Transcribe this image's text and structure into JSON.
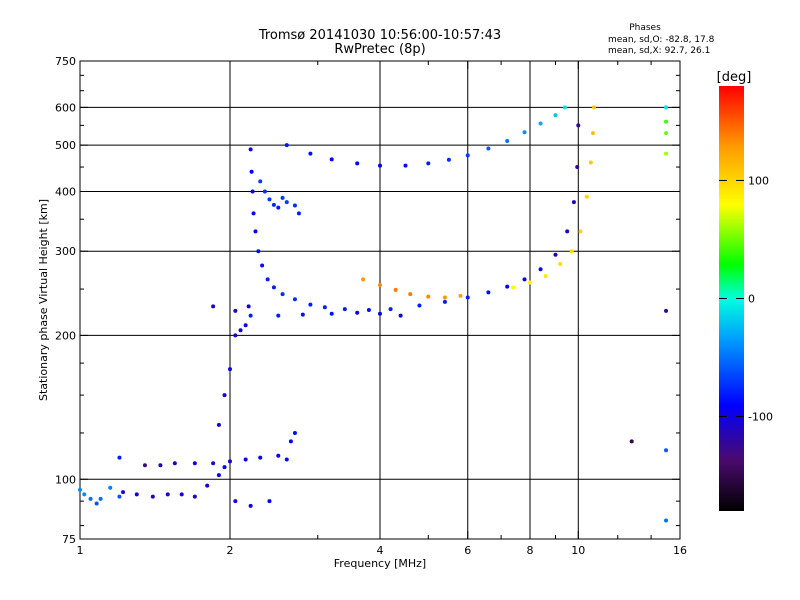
{
  "chart_data": {
    "type": "scatter",
    "title_line1": "Tromsø 20141030 10:56:00-10:57:43",
    "title_line2": "RwPretec (8p)",
    "stats": {
      "heading": "Phases",
      "line_o": "mean, sd,O: -82.8, 17.8",
      "line_x": "mean, sd,X: 92.7, 26.1"
    },
    "xlabel": "Frequency [MHz]",
    "ylabel": "Stationary phase Virtual Height [km]",
    "x_scale": "log",
    "y_scale": "log",
    "xlim": [
      1,
      16
    ],
    "ylim": [
      75,
      750
    ],
    "x_ticks": [
      1,
      2,
      4,
      6,
      8,
      10,
      16
    ],
    "x_tick_labels": [
      "1",
      "2",
      "4",
      "6",
      "8",
      "10",
      "16"
    ],
    "y_ticks": [
      75,
      100,
      200,
      300,
      400,
      500,
      600,
      750
    ],
    "y_tick_labels": [
      "75",
      "100",
      "200",
      "300",
      "400",
      "500",
      "600",
      "750"
    ],
    "grid_x": [
      2,
      4,
      6,
      8,
      10
    ],
    "grid_y": [
      100,
      200,
      300,
      400,
      500,
      600
    ],
    "colorbar": {
      "label": "[deg]",
      "range": [
        -180,
        180
      ],
      "ticks": [
        100,
        0,
        -100
      ],
      "tick_labels": [
        "100",
        "0",
        "-100"
      ]
    },
    "series": [
      {
        "points": [
          [
            1.0,
            95,
            -40
          ],
          [
            1.02,
            93,
            -40
          ],
          [
            1.05,
            91,
            -50
          ],
          [
            1.08,
            89,
            -60
          ],
          [
            1.1,
            91,
            -50
          ],
          [
            1.15,
            96,
            -45
          ],
          [
            1.2,
            92,
            -60
          ]
        ]
      },
      {
        "points": [
          [
            1.22,
            94,
            -110
          ],
          [
            1.3,
            93,
            -100
          ],
          [
            1.4,
            92,
            -115
          ],
          [
            1.5,
            93,
            -110
          ],
          [
            1.6,
            93,
            -105
          ],
          [
            1.7,
            92,
            -110
          ],
          [
            1.8,
            97,
            -100
          ],
          [
            1.9,
            102,
            -90
          ],
          [
            1.95,
            106,
            -95
          ]
        ]
      },
      {
        "points": [
          [
            1.2,
            111,
            -80
          ],
          [
            1.35,
            107,
            -130
          ],
          [
            1.45,
            107,
            -110
          ],
          [
            1.55,
            108,
            -110
          ],
          [
            1.7,
            108,
            -100
          ],
          [
            1.85,
            108,
            -105
          ],
          [
            2.0,
            109,
            -100
          ],
          [
            2.15,
            110,
            -100
          ],
          [
            2.3,
            111,
            -95
          ],
          [
            2.5,
            112,
            -95
          ]
        ]
      },
      {
        "points": [
          [
            1.9,
            130,
            -100
          ],
          [
            1.95,
            150,
            -105
          ],
          [
            2.0,
            170,
            -100
          ],
          [
            2.05,
            200,
            -105
          ],
          [
            2.1,
            205,
            -100
          ],
          [
            2.15,
            210,
            -95
          ],
          [
            2.18,
            230,
            -100
          ],
          [
            1.85,
            230,
            -110
          ],
          [
            2.05,
            225,
            -115
          ]
        ]
      },
      {
        "points": [
          [
            2.2,
            490,
            -95
          ],
          [
            2.21,
            440,
            -90
          ],
          [
            2.22,
            400,
            -90
          ],
          [
            2.23,
            360,
            -95
          ],
          [
            2.25,
            330,
            -90
          ],
          [
            2.28,
            300,
            -85
          ],
          [
            2.32,
            280,
            -85
          ],
          [
            2.38,
            262,
            -80
          ],
          [
            2.45,
            252,
            -80
          ],
          [
            2.55,
            244,
            -75
          ],
          [
            2.7,
            238,
            -75
          ],
          [
            2.9,
            232,
            -80
          ],
          [
            3.1,
            229,
            -80
          ],
          [
            3.4,
            227,
            -80
          ],
          [
            3.8,
            226,
            -85
          ],
          [
            4.2,
            227,
            -80
          ],
          [
            4.8,
            231,
            -80
          ],
          [
            5.4,
            235,
            -80
          ],
          [
            6.0,
            240,
            -80
          ],
          [
            6.6,
            246,
            -85
          ],
          [
            7.2,
            253,
            -90
          ],
          [
            7.8,
            262,
            -95
          ],
          [
            8.4,
            275,
            -100
          ],
          [
            9.0,
            295,
            -105
          ],
          [
            9.5,
            330,
            -110
          ],
          [
            9.8,
            380,
            -115
          ],
          [
            9.95,
            450,
            -120
          ],
          [
            10.0,
            550,
            -120
          ]
        ]
      },
      {
        "points": [
          [
            2.6,
            500,
            -85
          ],
          [
            2.9,
            480,
            -85
          ],
          [
            3.2,
            467,
            -90
          ],
          [
            3.6,
            458,
            -90
          ],
          [
            4.0,
            453,
            -90
          ],
          [
            4.5,
            453,
            -85
          ],
          [
            5.0,
            458,
            -80
          ],
          [
            5.5,
            466,
            -75
          ],
          [
            6.0,
            476,
            -70
          ],
          [
            6.6,
            492,
            -60
          ],
          [
            7.2,
            510,
            -50
          ],
          [
            7.8,
            532,
            -40
          ],
          [
            8.4,
            555,
            -30
          ],
          [
            9.0,
            578,
            -20
          ],
          [
            9.4,
            600,
            -10
          ]
        ]
      },
      {
        "points": [
          [
            2.3,
            420,
            -70
          ],
          [
            2.35,
            400,
            -75
          ],
          [
            2.4,
            385,
            -70
          ],
          [
            2.45,
            375,
            -75
          ],
          [
            2.5,
            370,
            -80
          ],
          [
            2.55,
            388,
            -70
          ],
          [
            2.6,
            380,
            -70
          ],
          [
            2.7,
            374,
            -75
          ],
          [
            2.75,
            360,
            -80
          ]
        ]
      },
      {
        "points": [
          [
            2.05,
            90,
            -100
          ],
          [
            2.2,
            88,
            -95
          ],
          [
            2.4,
            90,
            -90
          ],
          [
            2.6,
            110,
            -85
          ],
          [
            2.65,
            120,
            -90
          ],
          [
            2.7,
            125,
            -85
          ]
        ]
      },
      {
        "points": [
          [
            2.2,
            220,
            -80
          ],
          [
            2.5,
            220,
            -80
          ],
          [
            2.8,
            221,
            -85
          ],
          [
            3.2,
            222,
            -85
          ],
          [
            3.6,
            223,
            -90
          ],
          [
            4.0,
            222,
            -95
          ],
          [
            4.4,
            220,
            -100
          ]
        ]
      },
      {
        "points": [
          [
            3.7,
            262,
            130
          ],
          [
            4.0,
            255,
            135
          ],
          [
            4.3,
            249,
            140
          ],
          [
            4.6,
            244,
            140
          ],
          [
            5.0,
            241,
            135
          ],
          [
            5.4,
            240,
            130
          ],
          [
            5.8,
            242,
            125
          ]
        ]
      },
      {
        "points": [
          [
            7.4,
            252,
            80
          ],
          [
            8.0,
            258,
            85
          ],
          [
            8.6,
            266,
            90
          ],
          [
            9.2,
            282,
            95
          ],
          [
            9.7,
            300,
            100
          ],
          [
            10.1,
            330,
            100
          ],
          [
            10.4,
            390,
            100
          ],
          [
            10.6,
            460,
            105
          ],
          [
            10.7,
            530,
            110
          ],
          [
            10.75,
            600,
            110
          ]
        ]
      },
      {
        "points": [
          [
            15.0,
            600,
            -10
          ],
          [
            15.0,
            560,
            40
          ],
          [
            15.0,
            530,
            50
          ],
          [
            15.0,
            480,
            60
          ],
          [
            15.0,
            225,
            -120
          ],
          [
            15.0,
            115,
            -60
          ],
          [
            15.0,
            82,
            -50
          ],
          [
            12.8,
            120,
            -150
          ]
        ]
      }
    ]
  }
}
